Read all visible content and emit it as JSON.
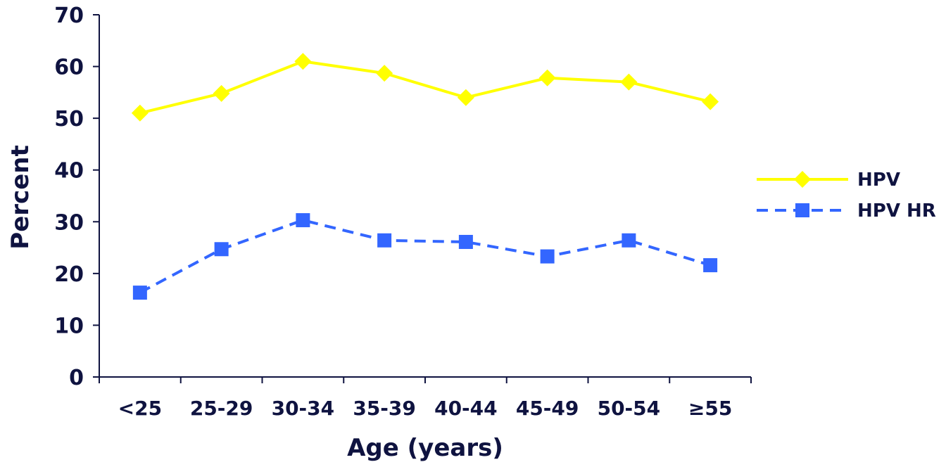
{
  "chart_data": {
    "type": "line",
    "categories": [
      "<25",
      "25-29",
      "30-34",
      "35-39",
      "40-44",
      "45-49",
      "50-54",
      "≥55"
    ],
    "series": [
      {
        "name": "HPV",
        "values": [
          51,
          54.8,
          61,
          58.7,
          54,
          57.8,
          57,
          53.2
        ],
        "color": "#ffff00",
        "marker": "diamond",
        "line_style": "solid"
      },
      {
        "name": "HPV HR",
        "values": [
          16.3,
          24.7,
          30.3,
          26.4,
          26.1,
          23.3,
          26.4,
          21.6
        ],
        "color": "#3366ff",
        "marker": "square",
        "line_style": "dashed"
      }
    ],
    "xlabel": "Age (years)",
    "ylabel": "Percent",
    "ylim": [
      0,
      70
    ],
    "yticks": [
      0,
      10,
      20,
      30,
      40,
      50,
      60,
      70
    ],
    "grid": false,
    "legend_position": "right",
    "text_color": "#0f1340"
  }
}
